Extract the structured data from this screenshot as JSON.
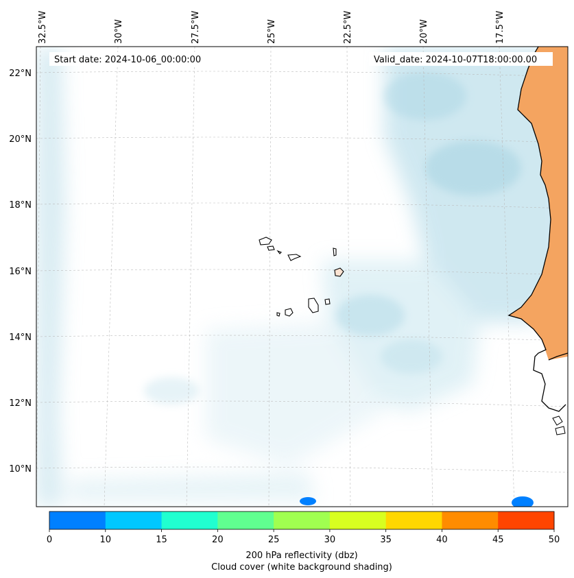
{
  "map": {
    "start_date": "Start date: 2024-10-06_00:00:00",
    "valid_date": "Valid_date: 2024-10-07T18:00:00.00",
    "lon_labels": [
      "32.5°W",
      "30°W",
      "27.5°W",
      "25°W",
      "22.5°W",
      "20°W",
      "17.5°W"
    ],
    "lat_labels": [
      "22°N",
      "20°N",
      "18°N",
      "16°N",
      "14°N",
      "12°N",
      "10°N"
    ],
    "colors": {
      "cloud": "#a9d6e5",
      "land_reflectivity": "#f4a460",
      "coast": "#000000",
      "grid": "#bbbbbb",
      "reflectivity_blob": "#0080ff"
    }
  },
  "colorbar": {
    "ticks": [
      "0",
      "10",
      "15",
      "20",
      "25",
      "30",
      "35",
      "40",
      "45",
      "50"
    ],
    "colors": [
      "#0080ff",
      "#00c8ff",
      "#20ffd0",
      "#60ff90",
      "#a0ff50",
      "#d8ff20",
      "#ffd700",
      "#ff8c00",
      "#ff4500"
    ],
    "label_line1": "200 hPa reflectivity (dbz)",
    "label_line2": "Cloud cover (white background shading)"
  }
}
